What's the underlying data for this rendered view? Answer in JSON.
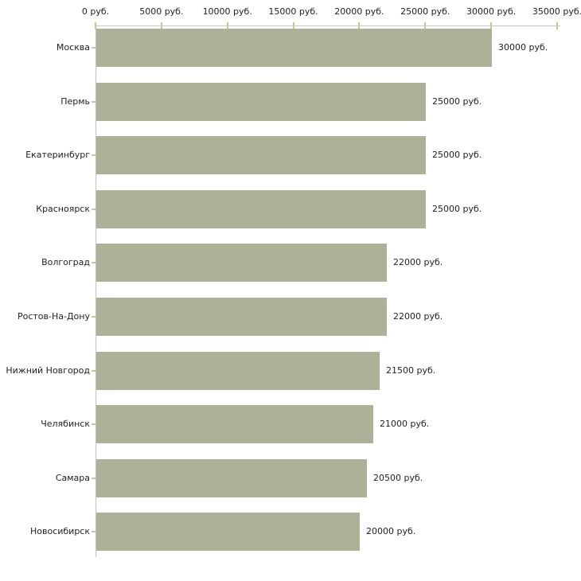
{
  "chart_data": {
    "type": "bar",
    "orientation": "horizontal",
    "title": "",
    "xlabel": "",
    "ylabel": "",
    "unit": "руб.",
    "categories": [
      "Москва",
      "Пермь",
      "Екатеринбург",
      "Красноярск",
      "Волгоград",
      "Ростов-На-Дону",
      "Нижний Новгород",
      "Челябинск",
      "Самара",
      "Новосибирск"
    ],
    "values": [
      30000,
      25000,
      25000,
      25000,
      22000,
      22000,
      21500,
      21000,
      20500,
      20000
    ],
    "value_labels": [
      "30000 руб.",
      "25000 руб.",
      "25000 руб.",
      "25000 руб.",
      "22000 руб.",
      "22000 руб.",
      "21500 руб.",
      "21000 руб.",
      "20500 руб.",
      "20000 руб."
    ],
    "x_tick_values": [
      0,
      5000,
      10000,
      15000,
      20000,
      25000,
      30000,
      35000
    ],
    "x_tick_labels": [
      "0 руб.",
      "5000 руб.",
      "10000 руб.",
      "15000 руб.",
      "20000 руб.",
      "25000 руб.",
      "30000 руб.",
      "35000 руб."
    ],
    "xlim": [
      0,
      35000
    ],
    "x_axis_position": "top",
    "legend": "none",
    "grid": "off",
    "colors": {
      "bar": "#acb197",
      "x_axis_line": "#c9c9c9",
      "y_axis_line": "#c2c2c2",
      "tick": "#c6c69a",
      "text": "#222222",
      "background": "#ffffff"
    }
  }
}
